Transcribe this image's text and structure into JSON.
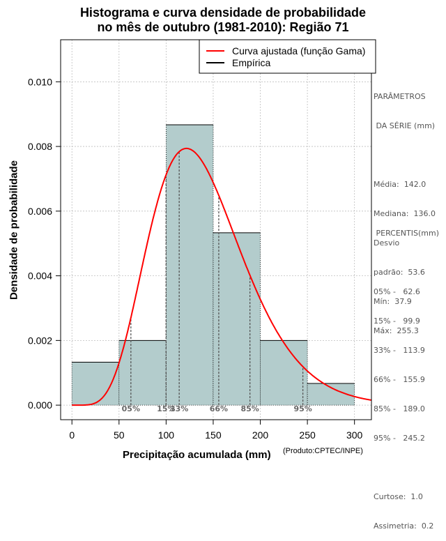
{
  "chart_data": {
    "type": "histogram",
    "title_lines": [
      "Histograma e curva densidade de probabilidade",
      "no mês de outubro (1981-2010): Região 71"
    ],
    "xlabel": "Precipitação acumulada (mm)",
    "ylabel": "Densidade de probabilidade",
    "credit": "(Produto:CPTEC/INPE)",
    "xlim": [
      -12,
      318
    ],
    "ylim": [
      -0.00045,
      0.0113
    ],
    "x_ticks": [
      0,
      50,
      100,
      150,
      200,
      250,
      300
    ],
    "x_tick_labels": [
      "0",
      "50",
      "100",
      "150",
      "200",
      "250",
      "300"
    ],
    "y_ticks": [
      0.0,
      0.002,
      0.004,
      0.006,
      0.008,
      0.01
    ],
    "y_tick_labels": [
      "0.000",
      "0.002",
      "0.004",
      "0.006",
      "0.008",
      "0.010"
    ],
    "grid": true,
    "bins": [
      {
        "x0": 0,
        "x1": 50,
        "density": 0.00133
      },
      {
        "x0": 50,
        "x1": 100,
        "density": 0.002
      },
      {
        "x0": 100,
        "x1": 150,
        "density": 0.00867
      },
      {
        "x0": 150,
        "x1": 200,
        "density": 0.00533
      },
      {
        "x0": 200,
        "x1": 250,
        "density": 0.002
      },
      {
        "x0": 250,
        "x1": 300,
        "density": 0.00067
      }
    ],
    "gamma_fit": {
      "shape": 7.02,
      "scale": 20.2
    },
    "legend": {
      "position": "top-right",
      "entries": [
        {
          "label": "Curva ajustada (função Gama)",
          "color": "#ff0000"
        },
        {
          "label": "Empírica",
          "color": "#000000"
        }
      ]
    },
    "percentile_markers": [
      {
        "label": "05%",
        "value": 62.6
      },
      {
        "label": "15%",
        "value": 99.9
      },
      {
        "label": "33%",
        "value": 113.9
      },
      {
        "label": "66%",
        "value": 155.9
      },
      {
        "label": "85%",
        "value": 189.0
      },
      {
        "label": "95%",
        "value": 245.2
      }
    ],
    "colors": {
      "bar_fill": "#b3cccc",
      "curve": "#ff0000",
      "grid": "#bdbdbd",
      "marker_label": "#666666"
    }
  },
  "parameters": {
    "heading": [
      "PARÂMETROS",
      " DA SÉRIE (mm)"
    ],
    "lines": [
      "Média:  142.0",
      "Mediana:  136.0",
      "Desvio",
      "padrão:  53.6",
      "Mín:  37.9",
      "Máx:  255.3"
    ]
  },
  "percentis": {
    "heading": " PERCENTIS(mm)",
    "lines": [
      "05% -   62.6",
      "15% -   99.9",
      "33% -   113.9",
      "66% -   155.9",
      "85% -   189.0",
      "95% -   245.2"
    ]
  },
  "stats": {
    "lines": [
      "Curtose:  1.0",
      "Assimetria:  0.2"
    ]
  }
}
